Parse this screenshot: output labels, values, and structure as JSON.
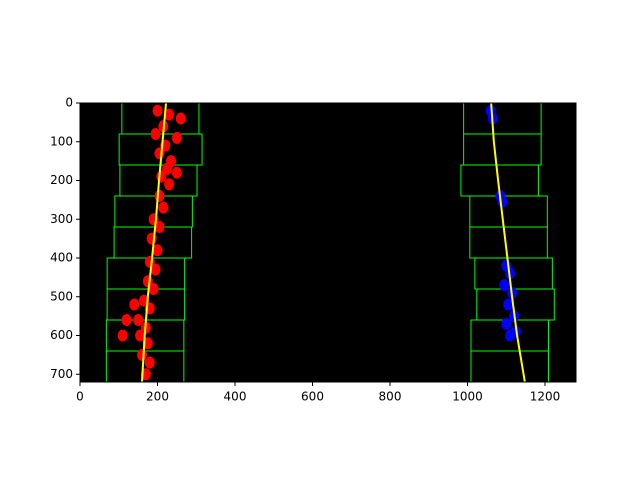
{
  "chart_data": {
    "type": "image",
    "xlim": [
      0,
      1280
    ],
    "ylim": [
      720,
      0
    ],
    "xticks": [
      0,
      200,
      400,
      600,
      800,
      1000,
      1200
    ],
    "yticks": [
      0,
      100,
      200,
      300,
      400,
      500,
      600,
      700
    ],
    "window_color": "#00ff00",
    "window_rows": [
      0,
      80,
      160,
      240,
      320,
      400,
      480,
      560,
      640,
      720
    ],
    "left_windows": [
      [
        108,
        307
      ],
      [
        101,
        315
      ],
      [
        103,
        302
      ],
      [
        90,
        290
      ],
      [
        88,
        288
      ],
      [
        70,
        270
      ],
      [
        70,
        270
      ],
      [
        68,
        268
      ],
      [
        68,
        268
      ]
    ],
    "right_windows": [
      [
        990,
        1190
      ],
      [
        990,
        1190
      ],
      [
        983,
        1183
      ],
      [
        1006,
        1206
      ],
      [
        1006,
        1206
      ],
      [
        1019,
        1219
      ],
      [
        1024,
        1224
      ],
      [
        1009,
        1209
      ],
      [
        1009,
        1209
      ]
    ],
    "pixels": [
      {
        "name": "left",
        "color": "#ff0000",
        "x": [
          200,
          230,
          260,
          215,
          195,
          250,
          220,
          205,
          235,
          225,
          210,
          230,
          205,
          215,
          190,
          205,
          185,
          200,
          180,
          195,
          175,
          190,
          165,
          180,
          150,
          170,
          155,
          175,
          160,
          180,
          170,
          120,
          110,
          140,
          250
        ],
        "y": [
          20,
          30,
          40,
          60,
          80,
          90,
          110,
          130,
          150,
          170,
          190,
          210,
          240,
          270,
          300,
          320,
          350,
          380,
          410,
          430,
          460,
          480,
          510,
          530,
          560,
          580,
          600,
          620,
          650,
          670,
          700,
          560,
          600,
          520,
          180
        ]
      },
      {
        "name": "right",
        "color": "#0000ff",
        "x": [
          1060,
          1065,
          1085,
          1090,
          1100,
          1110,
          1095,
          1115,
          1105,
          1120,
          1100,
          1125,
          1110
        ],
        "y": [
          20,
          40,
          240,
          255,
          420,
          440,
          470,
          490,
          520,
          550,
          570,
          590,
          600
        ]
      }
    ],
    "series": [
      {
        "name": "left fit",
        "color": "#ffff00",
        "x": [
          222,
          213,
          204,
          196,
          186,
          175,
          167,
          160
        ],
        "y": [
          0,
          100,
          200,
          300,
          400,
          500,
          600,
          720
        ]
      },
      {
        "name": "right fit",
        "color": "#ffff00",
        "x": [
          1061,
          1068,
          1079,
          1091,
          1103,
          1115,
          1128,
          1148
        ],
        "y": [
          0,
          100,
          200,
          300,
          400,
          500,
          600,
          720
        ]
      }
    ]
  }
}
